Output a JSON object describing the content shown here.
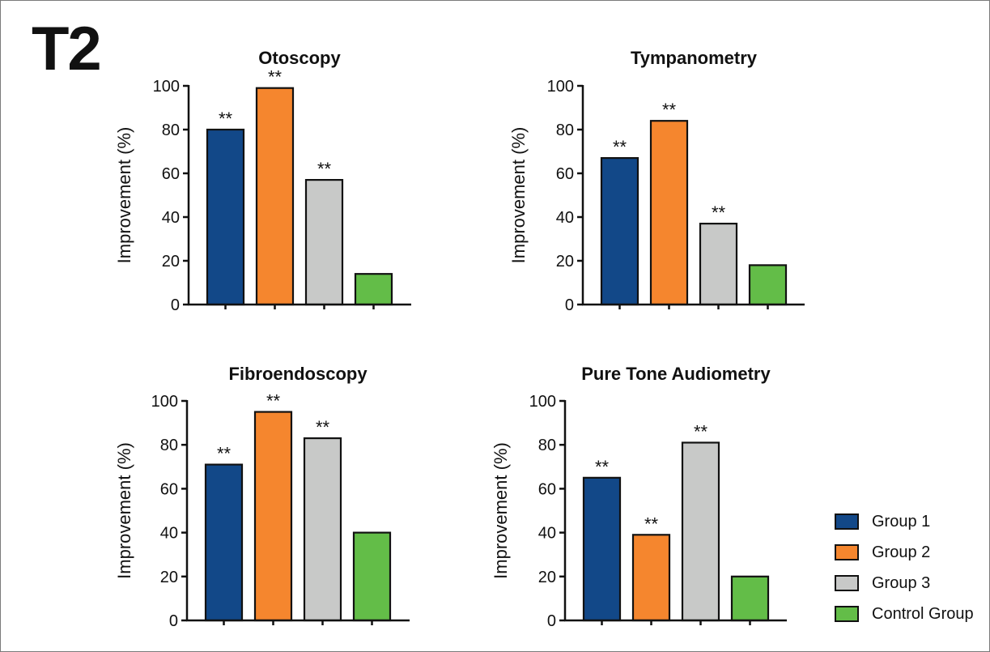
{
  "figure": {
    "panel_label": "T2"
  },
  "legend": [
    {
      "name": "Group 1",
      "color": "#124888"
    },
    {
      "name": "Group 2",
      "color": "#f5862e"
    },
    {
      "name": "Group 3",
      "color": "#c8c9c8"
    },
    {
      "name": "Control Group",
      "color": "#63bd48"
    }
  ],
  "chart_data": [
    {
      "type": "bar",
      "title": "Otoscopy",
      "ylabel": "Improvement (%)",
      "ylim": [
        0,
        100
      ],
      "yticks": [
        0,
        20,
        40,
        60,
        80,
        100
      ],
      "categories": [
        "Group 1",
        "Group 2",
        "Group 3",
        "Control Group"
      ],
      "values": [
        80,
        99,
        57,
        14
      ],
      "annotations": [
        "**",
        "**",
        "**",
        ""
      ]
    },
    {
      "type": "bar",
      "title": "Tympanometry",
      "ylabel": "Improvement (%)",
      "ylim": [
        0,
        100
      ],
      "yticks": [
        0,
        20,
        40,
        60,
        80,
        100
      ],
      "categories": [
        "Group 1",
        "Group 2",
        "Group 3",
        "Control Group"
      ],
      "values": [
        67,
        84,
        37,
        18
      ],
      "annotations": [
        "**",
        "**",
        "**",
        ""
      ]
    },
    {
      "type": "bar",
      "title": "Fibroendoscopy",
      "ylabel": "Improvement (%)",
      "ylim": [
        0,
        100
      ],
      "yticks": [
        0,
        20,
        40,
        60,
        80,
        100
      ],
      "categories": [
        "Group 1",
        "Group 2",
        "Group 3",
        "Control Group"
      ],
      "values": [
        71,
        95,
        83,
        40
      ],
      "annotations": [
        "**",
        "**",
        "**",
        ""
      ]
    },
    {
      "type": "bar",
      "title": "Pure Tone Audiometry",
      "ylabel": "Improvement (%)",
      "ylim": [
        0,
        100
      ],
      "yticks": [
        0,
        20,
        40,
        60,
        80,
        100
      ],
      "categories": [
        "Group 1",
        "Group 2",
        "Group 3",
        "Control Group"
      ],
      "values": [
        65,
        39,
        81,
        20
      ],
      "annotations": [
        "**",
        "**",
        "**",
        ""
      ]
    }
  ]
}
